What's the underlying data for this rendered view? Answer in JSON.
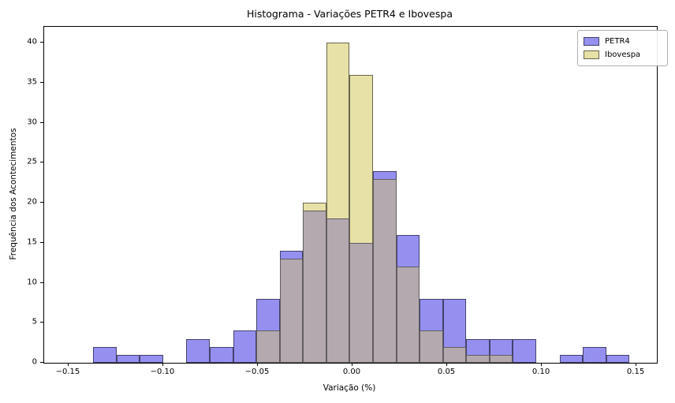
{
  "chart_data": {
    "type": "histogram",
    "title": "Histograma - Variações PETR4 e Ibovespa",
    "xlabel": "Variação (%)",
    "ylabel": "Frequência dos Acontecimentos",
    "xlim": [
      -0.1629,
      0.1608
    ],
    "ylim": [
      0,
      42
    ],
    "grid": false,
    "bin_width": 0.01232,
    "xticks": {
      "values": [
        -0.15,
        -0.1,
        -0.05,
        0.0,
        0.05,
        0.1,
        0.15
      ],
      "labels": [
        "−0.15",
        "−0.10",
        "−0.05",
        "0.00",
        "0.05",
        "0.10",
        "0.15"
      ]
    },
    "yticks": {
      "values": [
        0,
        5,
        10,
        15,
        20,
        25,
        30,
        35,
        40
      ],
      "labels": [
        "0",
        "5",
        "10",
        "15",
        "20",
        "25",
        "30",
        "35",
        "40"
      ]
    },
    "legend_position": "upper right",
    "series": [
      {
        "name": "PETR4",
        "color": "#9590f0",
        "bin_start": -0.137,
        "counts": [
          2,
          1,
          1,
          0,
          3,
          2,
          4,
          8,
          14,
          19,
          18,
          15,
          24,
          16,
          8,
          8,
          3,
          3,
          3,
          0,
          1,
          2,
          1
        ]
      },
      {
        "name": "Ibovespa",
        "color": "#e7e1a7",
        "bin_start": -0.05076,
        "counts": [
          4,
          13,
          20,
          40,
          36,
          23,
          12,
          4,
          2,
          1,
          1
        ]
      }
    ],
    "overlap_color": "#b3a9af",
    "edge_color": "#2e2e2e"
  }
}
